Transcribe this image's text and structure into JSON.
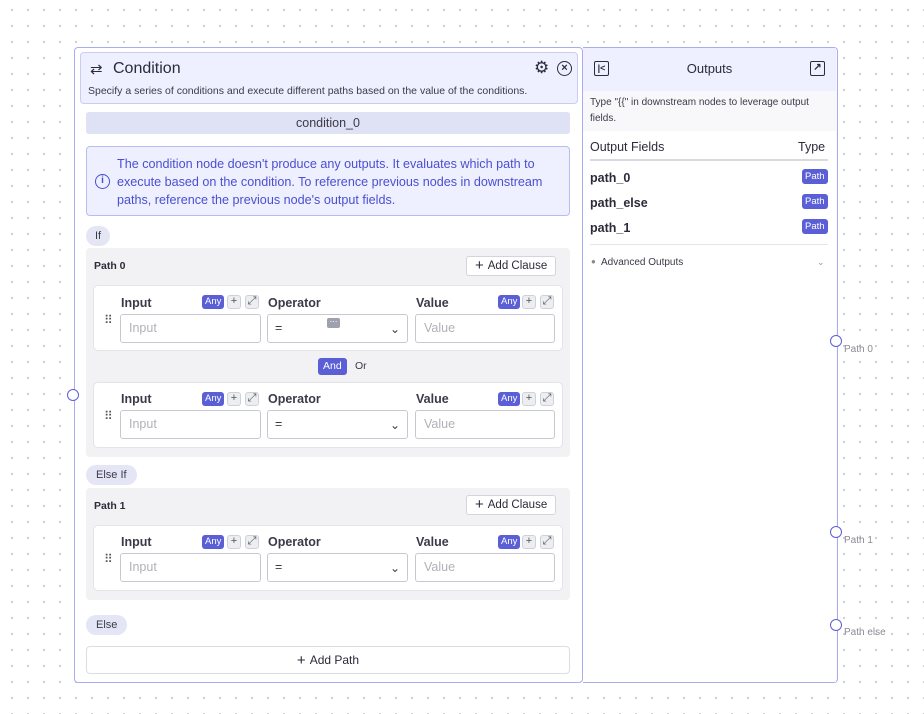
{
  "node": {
    "title": "Condition",
    "description": "Specify a series of conditions and execute different paths based on the value of the conditions.",
    "name": "condition_0",
    "info": "The condition node doesn't produce any outputs. It evaluates which path to execute based on the condition. To reference previous nodes in downstream paths, reference the previous node's output fields.",
    "add_path_label": "Add Path"
  },
  "labels": {
    "input": "Input",
    "operator": "Operator",
    "value": "Value",
    "any": "Any",
    "add_clause": "Add Clause",
    "input_placeholder": "Input",
    "value_placeholder": "Value",
    "and": "And",
    "or": "Or"
  },
  "sections": {
    "if": "If",
    "else_if": "Else If",
    "else": "Else"
  },
  "paths": [
    {
      "label": "Path 0",
      "clauses": [
        {
          "operator": "="
        },
        {
          "operator": "="
        }
      ]
    },
    {
      "label": "Path 1",
      "clauses": [
        {
          "operator": "="
        }
      ]
    }
  ],
  "outputs": {
    "title": "Outputs",
    "hint": "Type \"{{\" in downstream nodes to leverage output fields.",
    "col_fields": "Output Fields",
    "col_type": "Type",
    "fields": [
      {
        "name": "path_0",
        "type": "Path"
      },
      {
        "name": "path_else",
        "type": "Path"
      },
      {
        "name": "path_1",
        "type": "Path"
      }
    ],
    "advanced": "Advanced Outputs"
  },
  "handles": {
    "path_0": "Path 0",
    "path_1": "Path 1",
    "path_else": "Path else"
  },
  "colors": {
    "accent": "#5b5fd6",
    "node_border": "#a9adf0",
    "info_text": "#4a4fd0"
  },
  "icons": {
    "swap": "swap-arrows-icon",
    "settings": "gear-icon",
    "close": "close-circle-icon",
    "collapse": "collapse-panel-icon",
    "external": "external-link-icon"
  }
}
